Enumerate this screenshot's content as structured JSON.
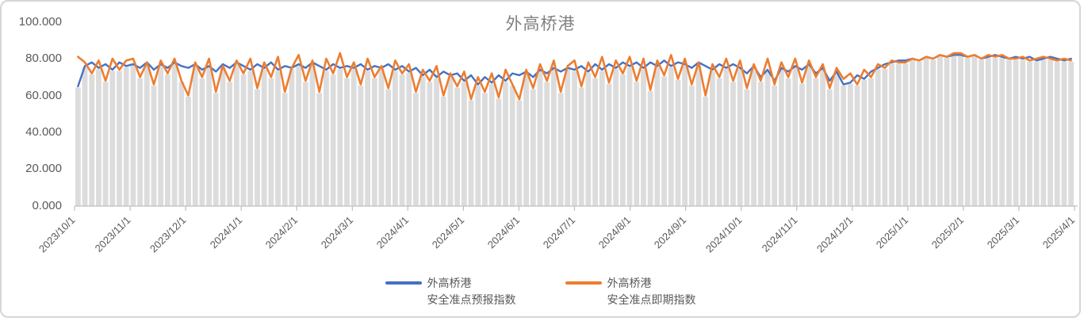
{
  "title": "外高桥港",
  "colors": {
    "forecast_blue": "#4472C4",
    "spot_orange": "#ED7D31",
    "bar_gray": "#DCDCDC",
    "axis_gray": "#BFBFBF",
    "tick_label_gray": "#595959",
    "title_gray": "#808080"
  },
  "y_axis": {
    "labels": [
      "100.000",
      "80.000",
      "60.000",
      "40.000",
      "20.000",
      "0.000"
    ],
    "min": 0,
    "max": 100
  },
  "x_axis": {
    "labels": [
      "2023/10/1",
      "2023/11/1",
      "2023/12/1",
      "2024/1/1",
      "2024/2/1",
      "2024/3/1",
      "2024/4/1",
      "2024/5/1",
      "2024/6/1",
      "2024/7/1",
      "2024/8/1",
      "2024/9/1",
      "2024/10/1",
      "2024/11/1",
      "2024/12/1",
      "2025/1/1",
      "2025/2/1",
      "2025/3/1",
      "2025/4/1"
    ]
  },
  "legend": [
    {
      "line1": "外高桥港",
      "line2": "安全准点预报指数",
      "color": "#4472C4"
    },
    {
      "line1": "外高桥港",
      "line2": "安全准点即期指数",
      "color": "#ED7D31"
    }
  ],
  "chart_data": {
    "type": "line",
    "title": "外高桥港",
    "xlabel": "",
    "ylabel": "",
    "ylim": [
      0,
      100
    ],
    "y_tick_step": 20,
    "y_tick_format": "three decimals",
    "grid": false,
    "legend_position": "bottom-center",
    "x_start": "2023/10/1",
    "x_end": "2025/4/1",
    "x_tick_labels": [
      "2023/10/1",
      "2023/11/1",
      "2023/12/1",
      "2024/1/1",
      "2024/2/1",
      "2024/3/1",
      "2024/4/1",
      "2024/5/1",
      "2024/6/1",
      "2024/7/1",
      "2024/8/1",
      "2024/9/1",
      "2024/10/1",
      "2024/11/1",
      "2024/12/1",
      "2025/1/1",
      "2025/2/1",
      "2025/3/1",
      "2025/4/1"
    ],
    "sampling_note": "values estimated from pixels at ~3.8-day intervals, 8 per month",
    "background_columns": {
      "color": "#DCDCDC",
      "height_follows": "lower of the two series"
    },
    "series": [
      {
        "name": "外高桥港安全准点预报指数",
        "color": "#4472C4",
        "values": [
          65,
          76,
          78,
          75,
          77,
          74,
          78,
          76,
          77,
          75,
          78,
          74,
          77,
          75,
          78,
          76,
          75,
          77,
          74,
          76,
          73,
          77,
          75,
          78,
          76,
          74,
          77,
          75,
          78,
          74,
          76,
          75,
          77,
          75,
          78,
          76,
          74,
          77,
          75,
          76,
          75,
          77,
          74,
          76,
          75,
          77,
          74,
          76,
          73,
          75,
          71,
          74,
          70,
          73,
          71,
          72,
          68,
          71,
          66,
          70,
          67,
          71,
          68,
          72,
          71,
          73,
          70,
          74,
          72,
          75,
          73,
          75,
          74,
          76,
          73,
          77,
          74,
          77,
          75,
          78,
          76,
          78,
          75,
          78,
          76,
          79,
          76,
          78,
          77,
          75,
          78,
          76,
          74,
          77,
          75,
          77,
          75,
          72,
          76,
          70,
          74,
          68,
          75,
          73,
          76,
          74,
          77,
          72,
          75,
          68,
          73,
          66,
          67,
          71,
          69,
          73,
          75,
          77,
          78,
          79,
          79,
          80,
          79,
          81,
          80,
          82,
          81,
          82,
          82,
          81,
          82,
          80,
          81,
          82,
          81,
          80,
          81,
          80,
          81,
          79,
          80,
          81,
          80,
          79,
          80
        ]
      },
      {
        "name": "外高桥港安全准点即期指数",
        "color": "#ED7D31",
        "values": [
          81,
          78,
          72,
          79,
          68,
          80,
          74,
          79,
          80,
          70,
          78,
          66,
          79,
          72,
          80,
          68,
          60,
          78,
          70,
          80,
          62,
          76,
          68,
          79,
          72,
          80,
          64,
          78,
          70,
          81,
          62,
          75,
          82,
          68,
          79,
          62,
          80,
          72,
          83,
          70,
          78,
          66,
          80,
          70,
          76,
          64,
          79,
          72,
          77,
          62,
          74,
          68,
          76,
          60,
          72,
          65,
          73,
          58,
          70,
          62,
          72,
          59,
          74,
          66,
          58,
          74,
          64,
          77,
          68,
          79,
          62,
          76,
          79,
          65,
          78,
          70,
          81,
          67,
          79,
          72,
          81,
          68,
          80,
          63,
          79,
          71,
          82,
          69,
          80,
          66,
          78,
          60,
          77,
          70,
          80,
          68,
          79,
          64,
          77,
          68,
          80,
          66,
          78,
          70,
          80,
          67,
          79,
          70,
          77,
          64,
          75,
          69,
          72,
          66,
          74,
          70,
          77,
          75,
          79,
          78,
          78,
          80,
          79,
          81,
          80,
          82,
          81,
          83,
          83,
          81,
          82,
          80,
          82,
          81,
          82,
          80,
          80,
          81,
          79,
          80,
          81,
          80,
          79,
          80,
          79
        ]
      }
    ]
  }
}
